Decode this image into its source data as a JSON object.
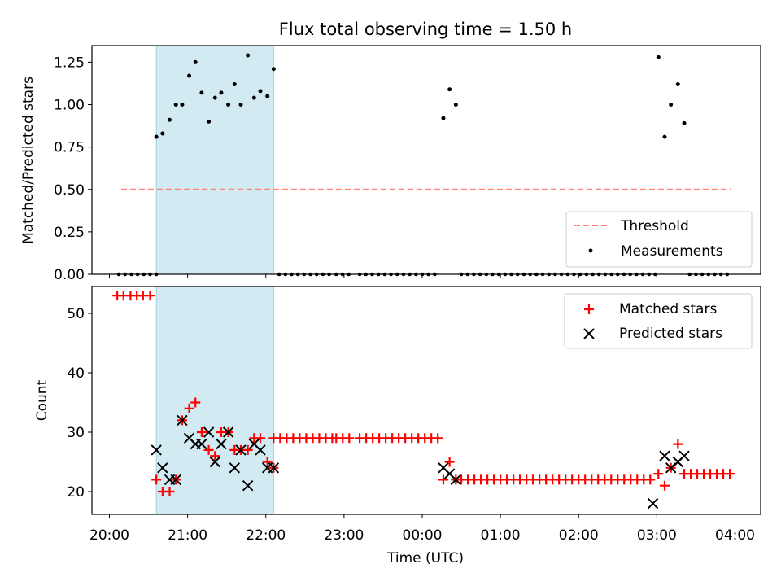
{
  "figure": {
    "title": "Flux total observing time = 1.50 h",
    "xlabel": "Time (UTC)",
    "x_tick_labels": [
      "20:00",
      "21:00",
      "22:00",
      "23:00",
      "00:00",
      "01:00",
      "02:00",
      "03:00",
      "04:00"
    ]
  },
  "chart_data": [
    {
      "type": "scatter",
      "ylabel": "Matched/Predicted stars",
      "y_tick_labels": [
        "0.00",
        "0.25",
        "0.50",
        "0.75",
        "1.00",
        "1.25"
      ],
      "ylim": [
        0,
        1.35
      ],
      "xlim_hours": [
        19.6,
        28.2
      ],
      "highlight_span_hours": [
        20.6,
        22.1
      ],
      "threshold": {
        "name": "Threshold",
        "value": 0.5,
        "x_start": 20.15,
        "x_end": 27.95,
        "color": "#ff7f7f",
        "style": "dashed"
      },
      "series": [
        {
          "name": "Measurements",
          "color": "#000000",
          "points": [
            [
              20.6,
              0.81
            ],
            [
              20.68,
              0.83
            ],
            [
              20.77,
              0.91
            ],
            [
              20.85,
              1.0
            ],
            [
              20.93,
              1.0
            ],
            [
              21.02,
              1.17
            ],
            [
              21.1,
              1.25
            ],
            [
              21.18,
              1.07
            ],
            [
              21.27,
              0.9
            ],
            [
              21.35,
              1.04
            ],
            [
              21.43,
              1.07
            ],
            [
              21.52,
              1.0
            ],
            [
              21.6,
              1.12
            ],
            [
              21.68,
              1.0
            ],
            [
              21.77,
              1.29
            ],
            [
              21.85,
              1.04
            ],
            [
              21.93,
              1.08
            ],
            [
              22.02,
              1.05
            ],
            [
              22.1,
              1.21
            ],
            [
              24.27,
              0.92
            ],
            [
              24.35,
              1.09
            ],
            [
              24.43,
              1.0
            ],
            [
              27.02,
              1.28
            ],
            [
              27.1,
              0.81
            ],
            [
              27.18,
              1.0
            ],
            [
              27.27,
              1.12
            ],
            [
              27.35,
              0.89
            ]
          ]
        }
      ],
      "zero_runs": [
        [
          20.12,
          20.6,
          0.08
        ],
        [
          22.17,
          22.85,
          0.08
        ],
        [
          22.9,
          23.1,
          0.08
        ],
        [
          23.2,
          24.2,
          0.08
        ],
        [
          24.5,
          27.0,
          0.08
        ],
        [
          27.42,
          27.95,
          0.08
        ]
      ],
      "legend": {
        "position": "lower right",
        "entries": [
          "Threshold",
          "Measurements"
        ]
      }
    },
    {
      "type": "scatter",
      "ylabel": "Count",
      "y_tick_labels": [
        "20",
        "30",
        "40",
        "50"
      ],
      "ylim": [
        16,
        55
      ],
      "xlim_hours": [
        19.6,
        28.2
      ],
      "highlight_span_hours": [
        20.6,
        22.1
      ],
      "series": [
        {
          "name": "Matched stars",
          "marker": "plus",
          "color": "#ff0000",
          "points": [
            [
              20.1,
              53
            ],
            [
              20.18,
              53
            ],
            [
              20.27,
              53
            ],
            [
              20.35,
              53
            ],
            [
              20.43,
              53
            ],
            [
              20.52,
              53
            ],
            [
              20.6,
              22
            ],
            [
              20.68,
              20
            ],
            [
              20.77,
              20
            ],
            [
              20.85,
              22
            ],
            [
              20.93,
              32
            ],
            [
              21.02,
              34
            ],
            [
              21.1,
              35
            ],
            [
              21.18,
              30
            ],
            [
              21.27,
              27
            ],
            [
              21.35,
              26
            ],
            [
              21.43,
              30
            ],
            [
              21.52,
              30
            ],
            [
              21.6,
              27
            ],
            [
              21.68,
              27
            ],
            [
              21.77,
              27
            ],
            [
              21.85,
              29
            ],
            [
              21.93,
              29
            ],
            [
              22.02,
              25
            ],
            [
              22.1,
              24
            ],
            [
              24.27,
              22
            ],
            [
              24.35,
              25
            ],
            [
              24.43,
              22
            ]
          ],
          "runs": [
            [
              22.1,
              22.85,
              29,
              0.0833
            ],
            [
              22.9,
              23.1,
              29,
              0.0833
            ],
            [
              23.2,
              24.2,
              29,
              0.0833
            ],
            [
              24.5,
              26.95,
              22,
              0.0833
            ],
            [
              27.02,
              27.02,
              23,
              0.0833
            ],
            [
              27.1,
              27.1,
              21,
              0.0833
            ],
            [
              27.18,
              27.18,
              24,
              0.0833
            ],
            [
              27.27,
              27.27,
              28,
              0.0833
            ],
            [
              27.35,
              27.95,
              23,
              0.0833
            ]
          ]
        },
        {
          "name": "Predicted stars",
          "marker": "x",
          "color": "#000000",
          "points": [
            [
              20.6,
              27
            ],
            [
              20.68,
              24
            ],
            [
              20.77,
              22
            ],
            [
              20.85,
              22
            ],
            [
              20.93,
              32
            ],
            [
              21.02,
              29
            ],
            [
              21.1,
              28
            ],
            [
              21.18,
              28
            ],
            [
              21.27,
              30
            ],
            [
              21.35,
              25
            ],
            [
              21.43,
              28
            ],
            [
              21.52,
              30
            ],
            [
              21.6,
              24
            ],
            [
              21.68,
              27
            ],
            [
              21.77,
              21
            ],
            [
              21.85,
              28
            ],
            [
              21.93,
              27
            ],
            [
              22.02,
              24
            ],
            [
              22.1,
              24
            ],
            [
              24.27,
              24
            ],
            [
              24.35,
              23
            ],
            [
              24.43,
              22
            ],
            [
              26.95,
              18
            ],
            [
              27.1,
              26
            ],
            [
              27.18,
              24
            ],
            [
              27.27,
              25
            ],
            [
              27.35,
              26
            ]
          ]
        }
      ],
      "legend": {
        "position": "upper right",
        "entries": [
          "Matched stars",
          "Predicted stars"
        ]
      }
    }
  ],
  "colors": {
    "span": "#add8e6",
    "axes": "#000000"
  }
}
